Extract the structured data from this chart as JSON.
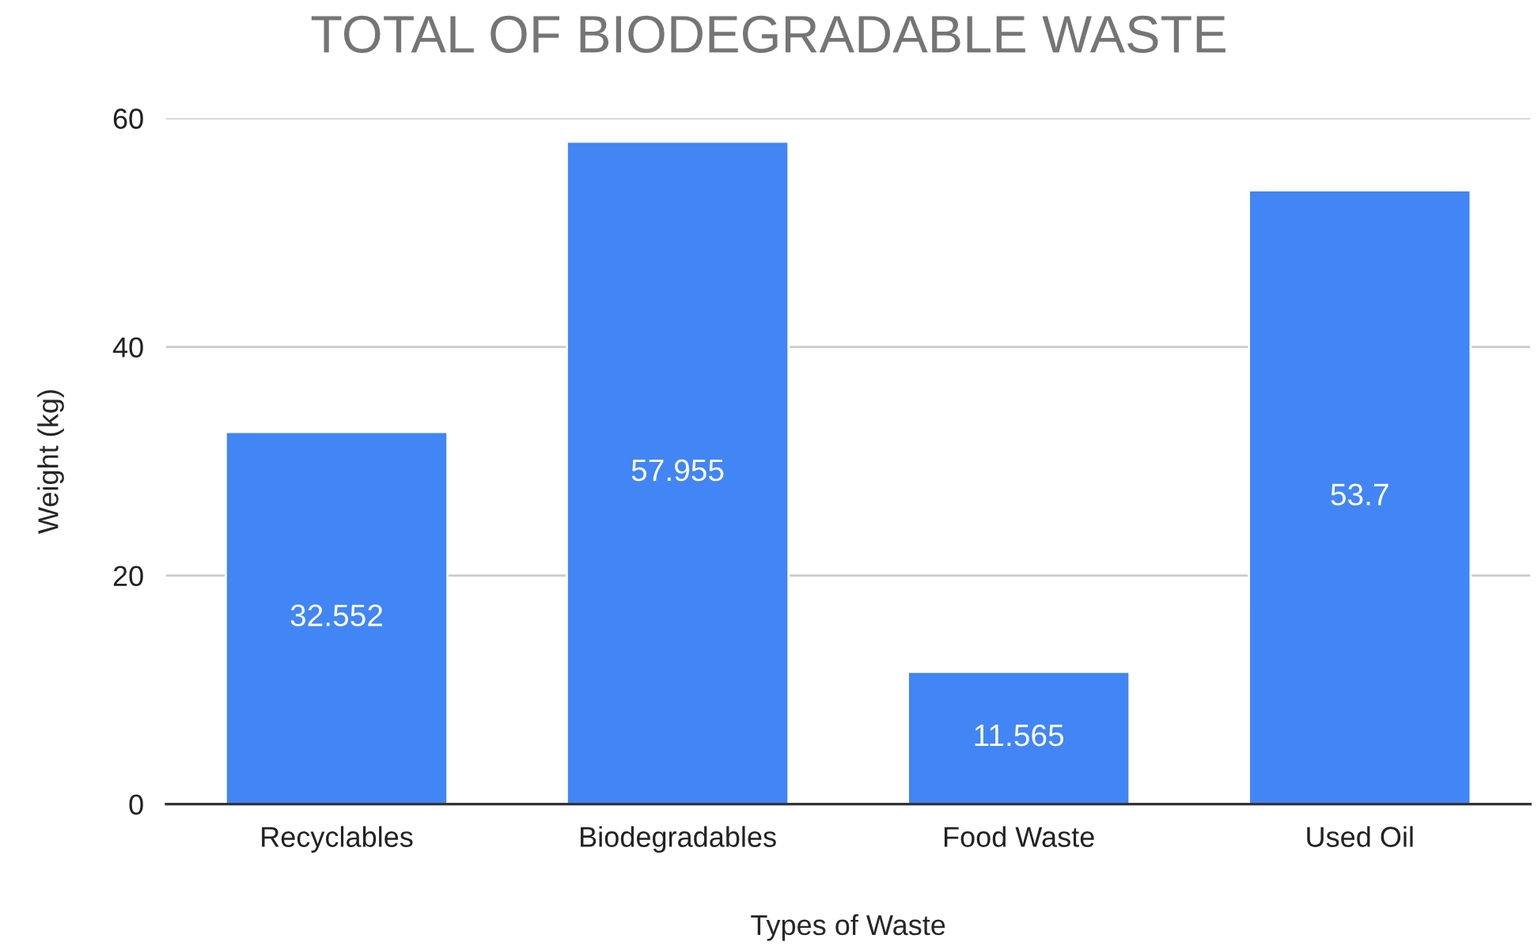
{
  "chart_data": {
    "type": "bar",
    "title": "TOTAL OF BIODEGRADABLE WASTE",
    "xlabel": "Types of Waste",
    "ylabel": "Weight (kg)",
    "categories": [
      "Recyclables",
      "Biodegradables",
      "Food Waste",
      "Used Oil"
    ],
    "values": [
      32.552,
      57.955,
      11.565,
      53.7
    ],
    "color": "#4285f4",
    "ylim": [
      0,
      60
    ],
    "yticks": [
      0,
      20,
      40,
      60
    ],
    "grid": "y",
    "data_labels": true,
    "legend": false
  }
}
